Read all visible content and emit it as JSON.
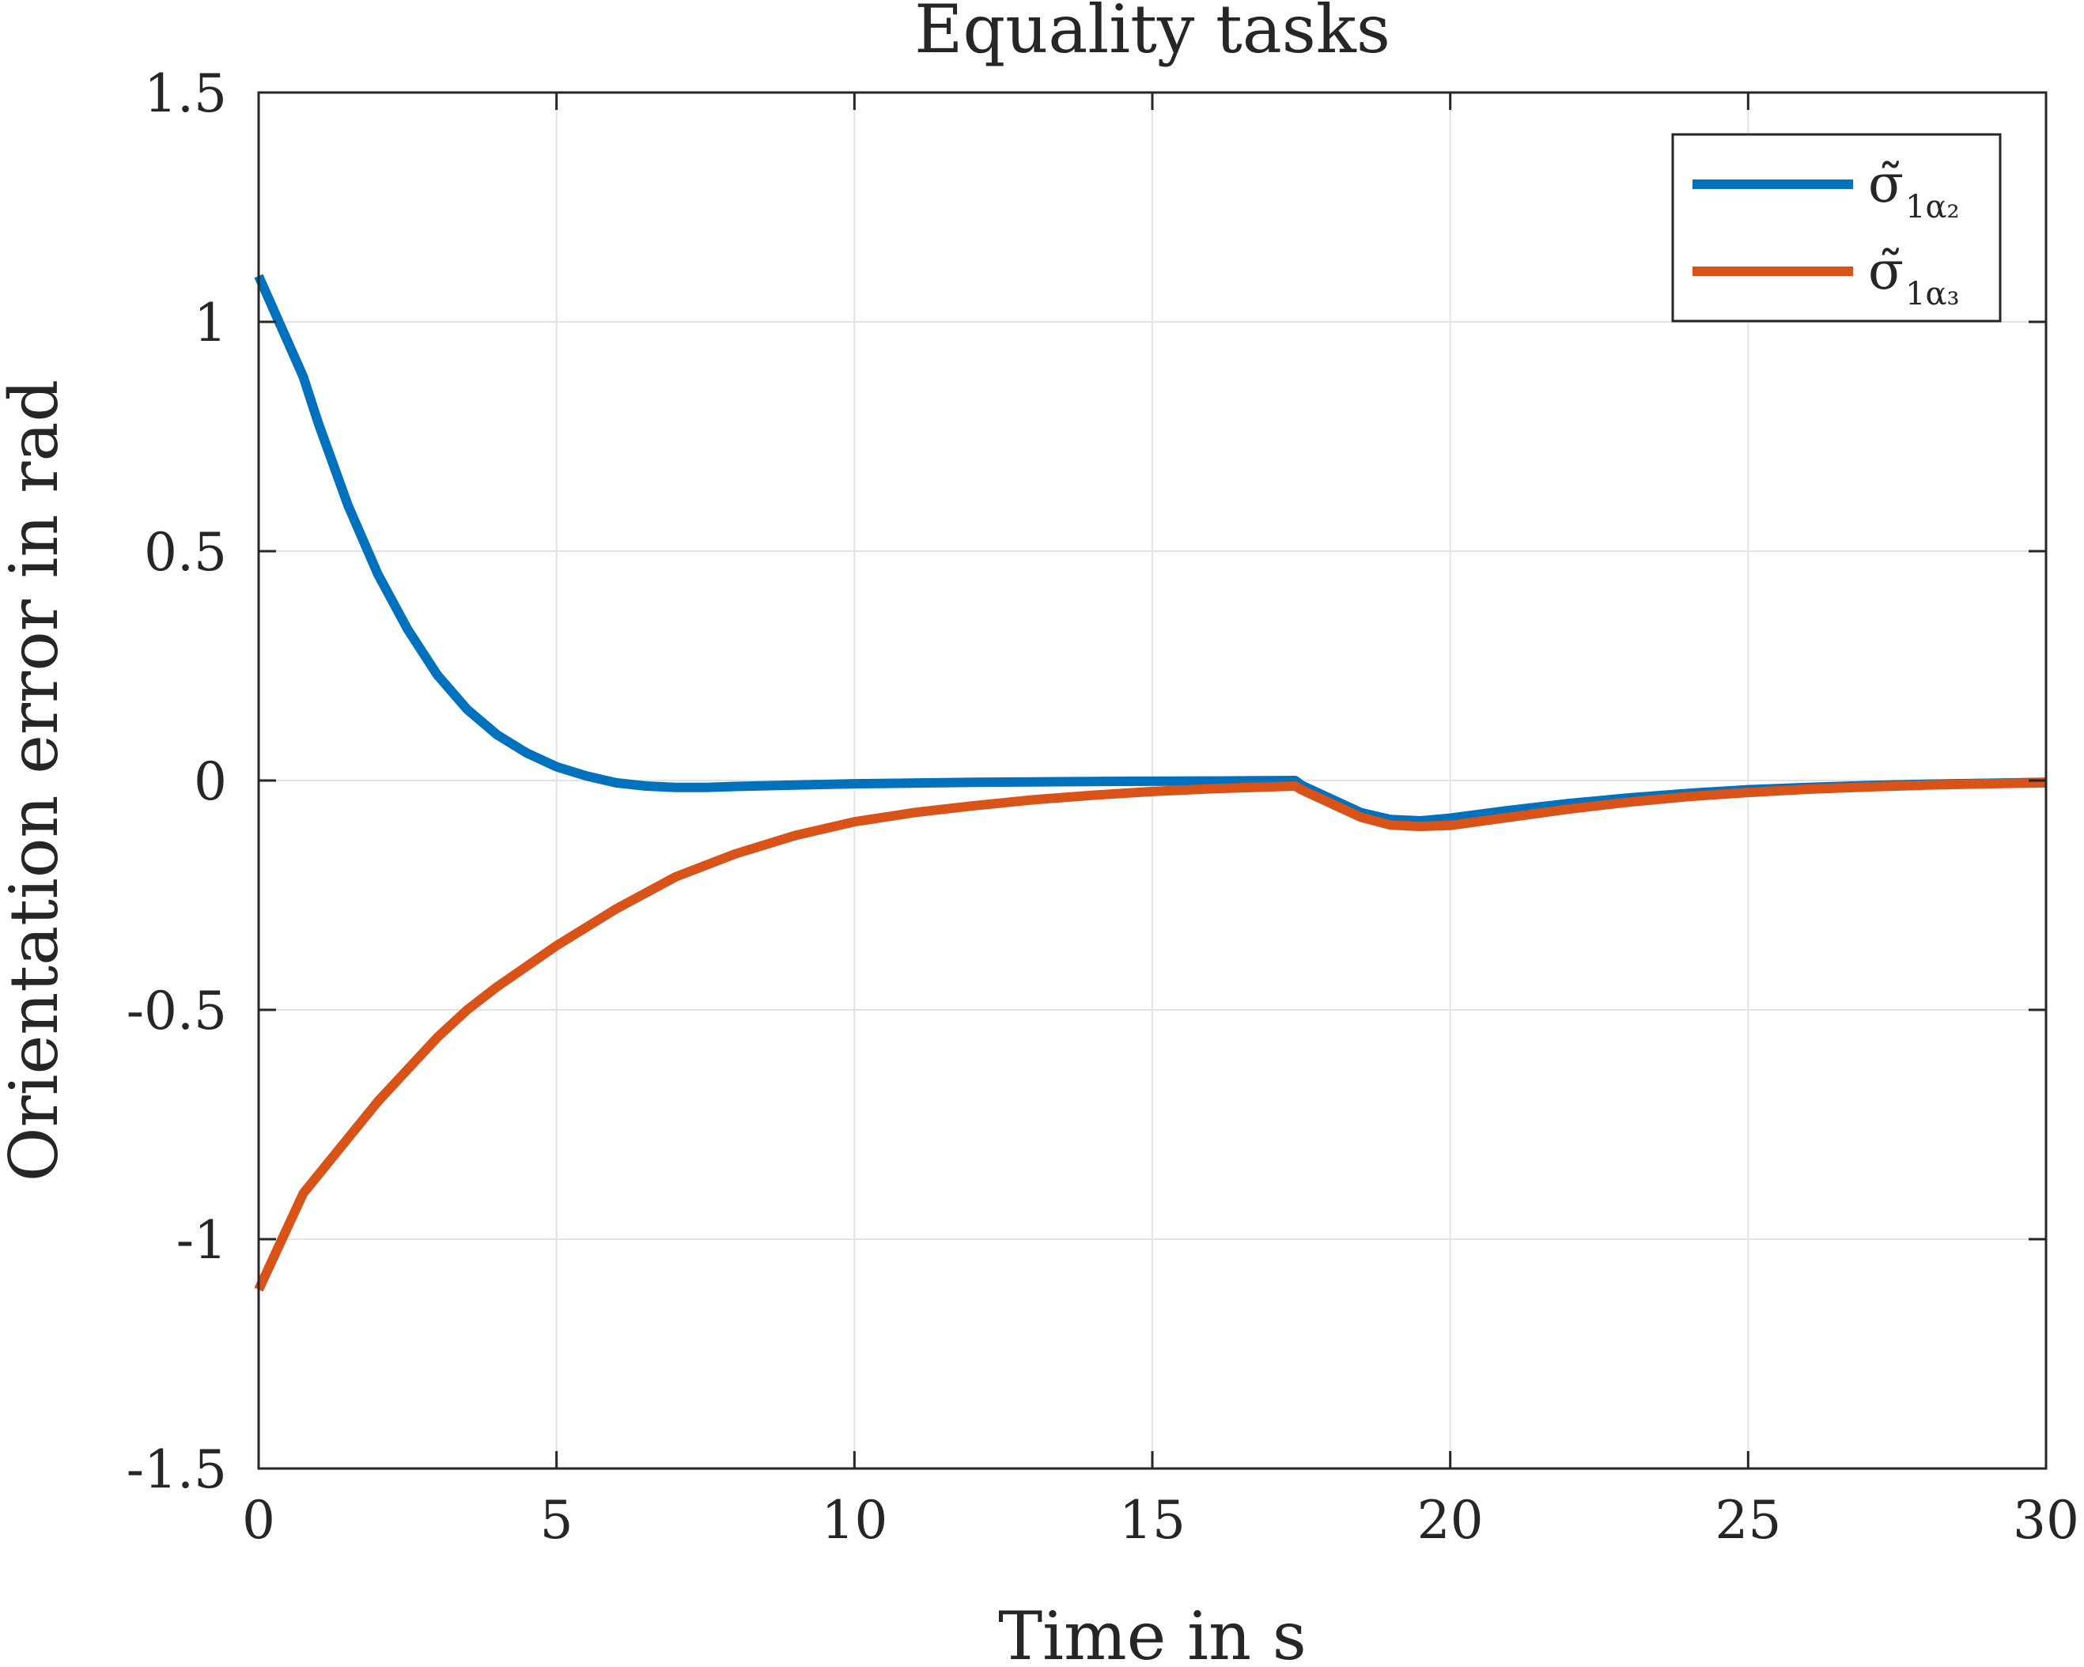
{
  "chart_data": {
    "type": "line",
    "title": "Equality tasks",
    "xlabel": "Time in s",
    "ylabel": "Orientation error in rad",
    "xlim": [
      0,
      30
    ],
    "ylim": [
      -1.5,
      1.5
    ],
    "x_ticks": [
      "0",
      "5",
      "10",
      "15",
      "20",
      "25",
      "30"
    ],
    "y_ticks": [
      "1.5",
      "1",
      "0.5",
      "0",
      "-0.5",
      "-1",
      "-1.5"
    ],
    "grid": true,
    "legend_position": "top-right",
    "series": [
      {
        "name": "σ̃",
        "legend_symbol": "σ̃",
        "legend_subscript": "1α₂",
        "color": "#0072BD",
        "x": [
          0,
          0.75,
          1.0,
          1.5,
          2.0,
          2.5,
          3.0,
          3.5,
          4.0,
          4.5,
          5.0,
          5.5,
          6.0,
          6.5,
          7.0,
          7.5,
          8.0,
          9.0,
          10.0,
          12.0,
          14.0,
          16.0,
          17.4,
          17.5,
          18.0,
          18.5,
          19.0,
          19.5,
          20.0,
          21.0,
          22.0,
          23.0,
          24.0,
          25.0,
          26.0,
          27.0,
          28.0,
          29.0,
          30.0
        ],
        "y": [
          1.1,
          0.88,
          0.78,
          0.6,
          0.45,
          0.33,
          0.23,
          0.155,
          0.1,
          0.06,
          0.03,
          0.01,
          -0.005,
          -0.012,
          -0.015,
          -0.015,
          -0.013,
          -0.01,
          -0.007,
          -0.004,
          -0.002,
          -0.001,
          0.0,
          -0.01,
          -0.04,
          -0.07,
          -0.085,
          -0.088,
          -0.082,
          -0.065,
          -0.05,
          -0.038,
          -0.028,
          -0.02,
          -0.015,
          -0.011,
          -0.008,
          -0.006,
          -0.004
        ]
      },
      {
        "name": "σ̃",
        "legend_symbol": "σ̃",
        "legend_subscript": "1α₃",
        "color": "#D95319",
        "x": [
          0,
          0.75,
          1.0,
          1.5,
          2.0,
          2.5,
          3.0,
          3.5,
          4.0,
          5.0,
          6.0,
          7.0,
          8.0,
          9.0,
          10.0,
          11.0,
          12.0,
          13.0,
          14.0,
          15.0,
          16.0,
          17.4,
          17.5,
          18.0,
          18.5,
          19.0,
          19.5,
          20.0,
          21.0,
          22.0,
          23.0,
          24.0,
          25.0,
          26.0,
          27.0,
          28.0,
          29.0,
          30.0
        ],
        "y": [
          -1.11,
          -0.9,
          -0.86,
          -0.78,
          -0.7,
          -0.63,
          -0.56,
          -0.5,
          -0.45,
          -0.36,
          -0.28,
          -0.21,
          -0.16,
          -0.12,
          -0.09,
          -0.07,
          -0.055,
          -0.042,
          -0.032,
          -0.024,
          -0.018,
          -0.012,
          -0.02,
          -0.05,
          -0.08,
          -0.097,
          -0.1,
          -0.098,
          -0.08,
          -0.062,
          -0.047,
          -0.035,
          -0.026,
          -0.019,
          -0.014,
          -0.01,
          -0.007,
          -0.005
        ]
      }
    ]
  }
}
